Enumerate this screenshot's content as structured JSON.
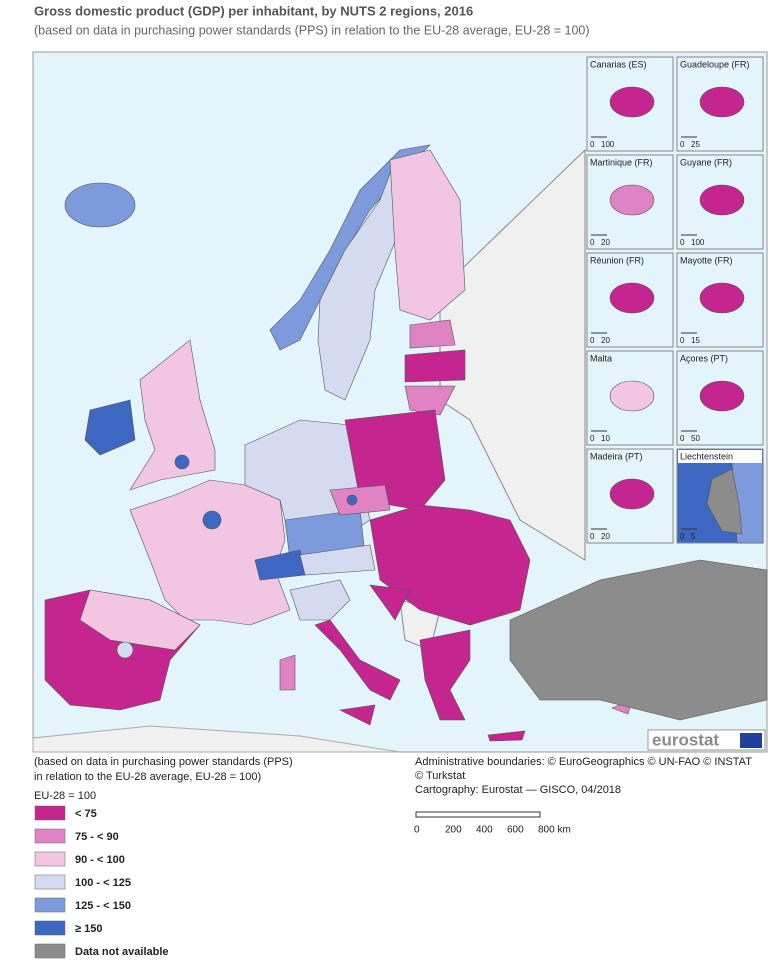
{
  "title": "Gross domestic product (GDP) per inhabitant, by NUTS 2 regions, 2016",
  "subtitle": "(based on data in purchasing power standards (PPS) in relation to the EU-28 average, EU-28 = 100)",
  "insets": [
    {
      "name": "Canarias (ES)",
      "scale": [
        "0",
        "100"
      ]
    },
    {
      "name": "Guadeloupe (FR)",
      "scale": [
        "0",
        "25"
      ]
    },
    {
      "name": "Martinique (FR)",
      "scale": [
        "0",
        "20"
      ]
    },
    {
      "name": "Guyane (FR)",
      "scale": [
        "0",
        "100"
      ]
    },
    {
      "name": "Réunion (FR)",
      "scale": [
        "0",
        "20"
      ]
    },
    {
      "name": "Mayotte (FR)",
      "scale": [
        "0",
        "15"
      ]
    },
    {
      "name": "Malta",
      "scale": [
        "0",
        "10"
      ]
    },
    {
      "name": "Açores (PT)",
      "scale": [
        "0",
        "50"
      ]
    },
    {
      "name": "Madeira (PT)",
      "scale": [
        "0",
        "20"
      ]
    },
    {
      "name": "Liechtenstein",
      "scale": [
        "0",
        "5"
      ]
    }
  ],
  "logo": "eurostat",
  "legend": {
    "note_lines": [
      "(based on data in purchasing power standards (PPS)",
      "in relation to the EU-28 average, EU-28 = 100)"
    ],
    "base": "EU-28 = 100",
    "classes": [
      {
        "label": "< 75",
        "color": "#c5258f"
      },
      {
        "label": "75 - < 90",
        "color": "#e083c4"
      },
      {
        "label": "90 - < 100",
        "color": "#f2c6e3"
      },
      {
        "label": "100 - < 125",
        "color": "#d4dbf1"
      },
      {
        "label": "125 - < 150",
        "color": "#7d9bdc"
      },
      {
        "label": "≥ 150",
        "color": "#3d67c1"
      },
      {
        "label": "Data not available",
        "color": "#8c8c8c"
      }
    ]
  },
  "credits": [
    "Administrative boundaries: © EuroGeographics © UN-FAO © INSTAT",
    "© Turkstat",
    "Cartography: Eurostat — GISCO, 04/2018"
  ],
  "scale_bar": [
    "0",
    "200",
    "400",
    "600",
    "800 km"
  ]
}
